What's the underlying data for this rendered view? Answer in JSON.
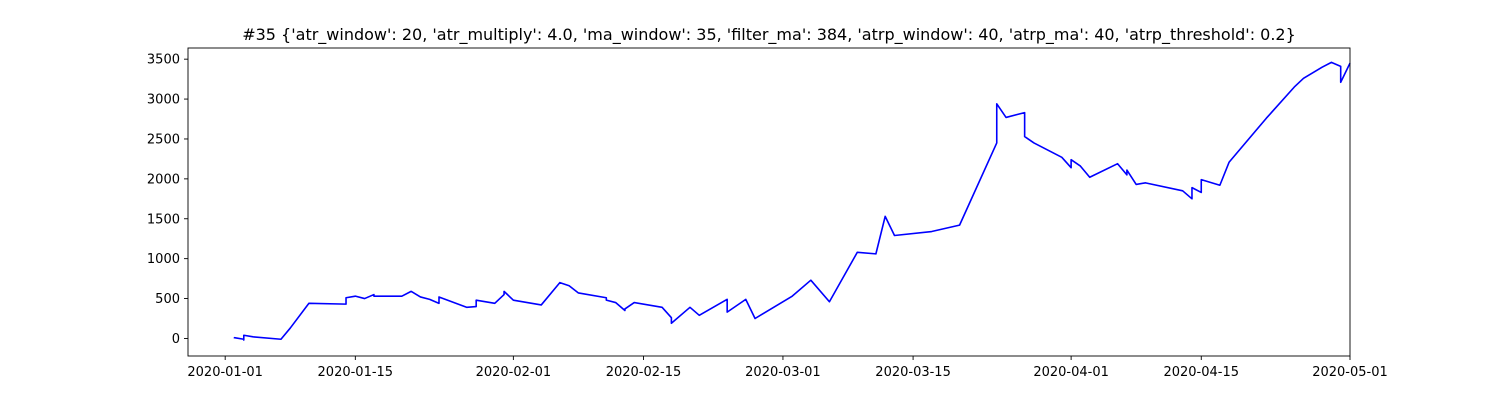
{
  "chart_data": {
    "type": "line",
    "title": "#35 {'atr_window': 20, 'atr_multiply': 4.0, 'ma_window': 35, 'filter_ma': 384, 'atrp_window': 40, 'atrp_ma': 40, 'atrp_threshold': 0.2}",
    "xlabel": "",
    "ylabel": "",
    "xlim": [
      "2019-12-28",
      "2020-05-01"
    ],
    "ylim": [
      -220,
      3640
    ],
    "grid": false,
    "x_ticks": [
      "2020-01-01",
      "2020-01-15",
      "2020-02-01",
      "2020-02-15",
      "2020-03-01",
      "2020-03-15",
      "2020-04-01",
      "2020-04-15",
      "2020-05-01"
    ],
    "y_ticks": [
      0,
      500,
      1000,
      1500,
      2000,
      2500,
      3000,
      3500
    ],
    "series": [
      {
        "color": "#0000ff",
        "points": [
          [
            "2020-01-02",
            0
          ],
          [
            "2020-01-02",
            10
          ],
          [
            "2020-01-03",
            -10
          ],
          [
            "2020-01-03",
            -20
          ],
          [
            "2020-01-03",
            40
          ],
          [
            "2020-01-04",
            20
          ],
          [
            "2020-01-07",
            -10
          ],
          [
            "2020-01-08",
            130
          ],
          [
            "2020-01-10",
            440
          ],
          [
            "2020-01-14",
            430
          ],
          [
            "2020-01-14",
            510
          ],
          [
            "2020-01-15",
            530
          ],
          [
            "2020-01-16",
            500
          ],
          [
            "2020-01-17",
            550
          ],
          [
            "2020-01-17",
            530
          ],
          [
            "2020-01-20",
            530
          ],
          [
            "2020-01-21",
            590
          ],
          [
            "2020-01-22",
            520
          ],
          [
            "2020-01-23",
            490
          ],
          [
            "2020-01-24",
            440
          ],
          [
            "2020-01-24",
            520
          ],
          [
            "2020-01-27",
            390
          ],
          [
            "2020-01-28",
            400
          ],
          [
            "2020-01-28",
            480
          ],
          [
            "2020-01-30",
            440
          ],
          [
            "2020-01-31",
            550
          ],
          [
            "2020-01-31",
            590
          ],
          [
            "2020-02-01",
            480
          ],
          [
            "2020-02-04",
            420
          ],
          [
            "2020-02-06",
            700
          ],
          [
            "2020-02-07",
            660
          ],
          [
            "2020-02-08",
            570
          ],
          [
            "2020-02-11",
            510
          ],
          [
            "2020-02-11",
            480
          ],
          [
            "2020-02-12",
            450
          ],
          [
            "2020-02-13",
            350
          ],
          [
            "2020-02-13",
            370
          ],
          [
            "2020-02-14",
            450
          ],
          [
            "2020-02-17",
            390
          ],
          [
            "2020-02-18",
            260
          ],
          [
            "2020-02-18",
            190
          ],
          [
            "2020-02-20",
            390
          ],
          [
            "2020-02-21",
            290
          ],
          [
            "2020-02-24",
            490
          ],
          [
            "2020-02-24",
            330
          ],
          [
            "2020-02-26",
            490
          ],
          [
            "2020-02-27",
            250
          ],
          [
            "2020-03-02",
            530
          ],
          [
            "2020-03-04",
            730
          ],
          [
            "2020-03-06",
            460
          ],
          [
            "2020-03-09",
            1080
          ],
          [
            "2020-03-11",
            1060
          ],
          [
            "2020-03-12",
            1530
          ],
          [
            "2020-03-13",
            1290
          ],
          [
            "2020-03-17",
            1340
          ],
          [
            "2020-03-20",
            1420
          ],
          [
            "2020-03-24",
            2450
          ],
          [
            "2020-03-24",
            2940
          ],
          [
            "2020-03-25",
            2770
          ],
          [
            "2020-03-27",
            2830
          ],
          [
            "2020-03-27",
            2530
          ],
          [
            "2020-03-28",
            2450
          ],
          [
            "2020-03-31",
            2270
          ],
          [
            "2020-04-01",
            2140
          ],
          [
            "2020-04-01",
            2240
          ],
          [
            "2020-04-02",
            2160
          ],
          [
            "2020-04-03",
            2020
          ],
          [
            "2020-04-06",
            2190
          ],
          [
            "2020-04-07",
            2050
          ],
          [
            "2020-04-07",
            2110
          ],
          [
            "2020-04-08",
            1930
          ],
          [
            "2020-04-09",
            1950
          ],
          [
            "2020-04-13",
            1850
          ],
          [
            "2020-04-14",
            1750
          ],
          [
            "2020-04-14",
            1890
          ],
          [
            "2020-04-15",
            1830
          ],
          [
            "2020-04-15",
            1990
          ],
          [
            "2020-04-17",
            1920
          ],
          [
            "2020-04-18",
            2210
          ],
          [
            "2020-04-22",
            2760
          ],
          [
            "2020-04-25",
            3150
          ],
          [
            "2020-04-26",
            3260
          ],
          [
            "2020-04-28",
            3400
          ],
          [
            "2020-04-29",
            3460
          ],
          [
            "2020-04-30",
            3410
          ],
          [
            "2020-04-30",
            3210
          ],
          [
            "2020-05-01",
            3450
          ]
        ]
      }
    ]
  }
}
